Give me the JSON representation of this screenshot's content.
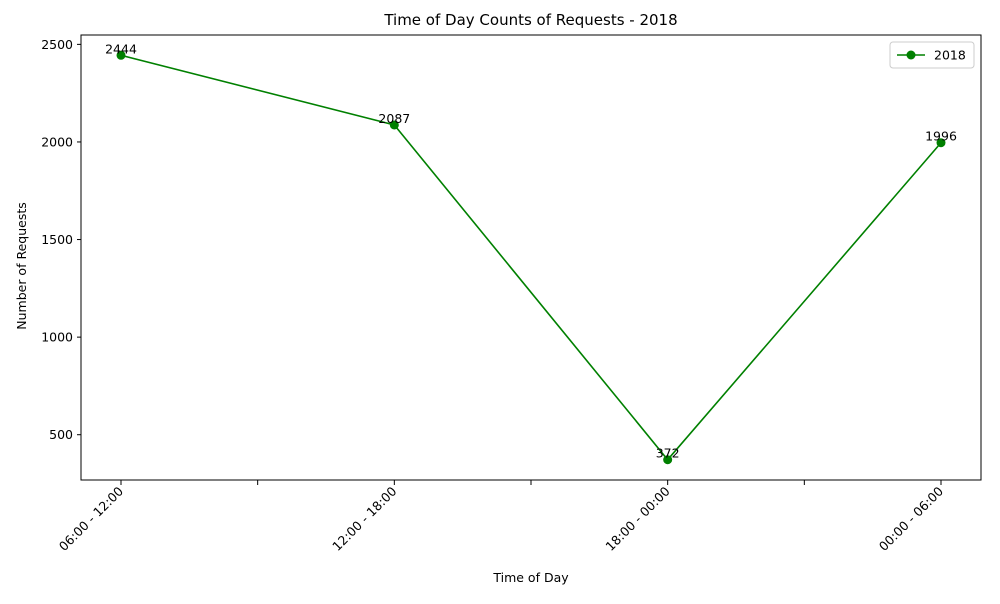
{
  "chart_data": {
    "type": "line",
    "title": "Time of Day Counts of Requests - 2018",
    "xlabel": "Time of Day",
    "ylabel": "Number of Requests",
    "categories": [
      "06:00 - 12:00",
      "12:00 - 18:00",
      "18:00 - 00:00",
      "00:00 - 06:00"
    ],
    "series": [
      {
        "name": "2018",
        "values": [
          2444,
          2087,
          372,
          1996
        ],
        "color": "#008000",
        "marker": "circle"
      }
    ],
    "data_labels": [
      "2444",
      "2087",
      "372",
      "1996"
    ],
    "yticks": [
      500,
      1000,
      1500,
      2000,
      2500
    ],
    "ytick_labels": [
      "500",
      "1000",
      "1500",
      "2000",
      "2500"
    ],
    "ylim": [
      268,
      2548
    ],
    "minor_xticks": true,
    "grid": false,
    "legend_position": "top-right"
  }
}
